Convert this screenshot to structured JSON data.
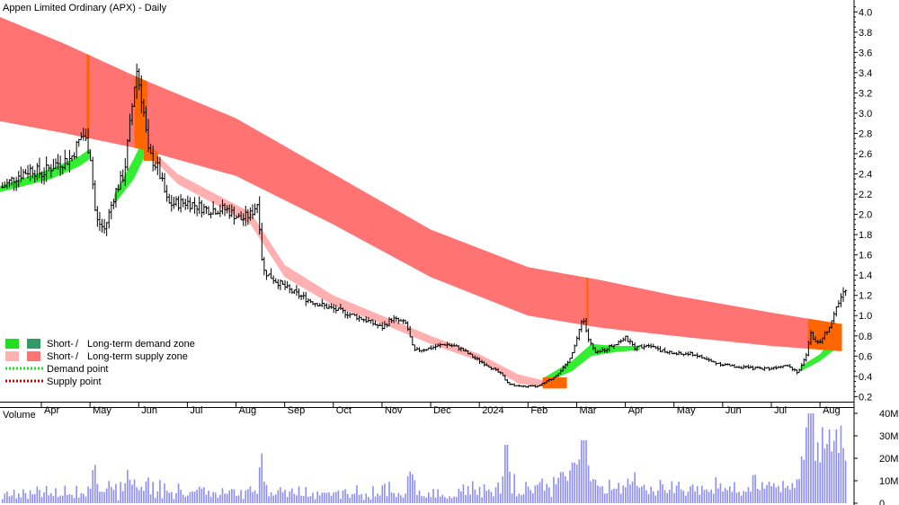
{
  "chart_data": {
    "type": "candlestick",
    "title": "Appen Limited Ordinary (APX) - Daily",
    "price_axis": {
      "ticks": [
        0.2,
        0.4,
        0.6,
        0.8,
        1.0,
        1.2,
        1.4,
        1.6,
        1.8,
        2.0,
        2.2,
        2.4,
        2.6,
        2.8,
        3.0,
        3.2,
        3.4,
        3.6,
        3.8,
        4.0
      ],
      "tick_labels": [
        "0.2",
        "0.4",
        "0.6",
        "0.8",
        "1.0",
        "1.2",
        "1.4",
        "1.6",
        "1.8",
        "2.0",
        "2.2",
        "2.4",
        "2.6",
        "2.8",
        "3.0",
        "3.2",
        "3.4",
        "3.6",
        "3.8",
        "4.0"
      ],
      "ylim": [
        0.15,
        4.1
      ]
    },
    "x_axis": {
      "labels": [
        "Apr",
        "May",
        "Jun",
        "Jul",
        "Aug",
        "Sep",
        "Oct",
        "Nov",
        "Dec",
        "2024",
        "Feb",
        "Mar",
        "Apr",
        "May",
        "Jun",
        "Jul",
        "Aug"
      ],
      "label_positions_month_index": [
        0,
        1,
        2,
        3,
        4,
        5,
        6,
        7,
        8,
        9,
        10,
        11,
        12,
        13,
        14,
        15,
        16
      ],
      "xlim_months": [
        -0.85,
        16.7
      ]
    },
    "volume_panel": {
      "title": "Volume",
      "ticks": [
        0,
        10,
        20,
        30,
        40
      ],
      "tick_labels": [
        "0",
        "10M",
        "20M",
        "30M",
        "40M"
      ],
      "ylim_millions": [
        0,
        42
      ],
      "bar_color": "#8c8cff"
    },
    "price_path": [
      {
        "m": -0.85,
        "p": 2.25
      },
      {
        "m": -0.5,
        "p": 2.38
      },
      {
        "m": -0.2,
        "p": 2.45
      },
      {
        "m": 0.0,
        "p": 2.4
      },
      {
        "m": 0.3,
        "p": 2.5
      },
      {
        "m": 0.6,
        "p": 2.55
      },
      {
        "m": 0.85,
        "p": 2.8
      },
      {
        "m": 1.0,
        "p": 2.62
      },
      {
        "m": 1.12,
        "p": 1.95
      },
      {
        "m": 1.3,
        "p": 1.85
      },
      {
        "m": 1.5,
        "p": 2.2
      },
      {
        "m": 1.7,
        "p": 2.4
      },
      {
        "m": 1.85,
        "p": 3.0
      },
      {
        "m": 1.95,
        "p": 3.45
      },
      {
        "m": 2.08,
        "p": 3.1
      },
      {
        "m": 2.2,
        "p": 2.6
      },
      {
        "m": 2.4,
        "p": 2.45
      },
      {
        "m": 2.6,
        "p": 2.1
      },
      {
        "m": 3.0,
        "p": 2.12
      },
      {
        "m": 3.4,
        "p": 2.05
      },
      {
        "m": 3.8,
        "p": 2.05
      },
      {
        "m": 4.1,
        "p": 1.95
      },
      {
        "m": 4.3,
        "p": 2.0
      },
      {
        "m": 4.45,
        "p": 2.12
      },
      {
        "m": 4.55,
        "p": 1.45
      },
      {
        "m": 4.8,
        "p": 1.35
      },
      {
        "m": 5.1,
        "p": 1.25
      },
      {
        "m": 5.5,
        "p": 1.15
      },
      {
        "m": 5.9,
        "p": 1.08
      },
      {
        "m": 6.3,
        "p": 1.02
      },
      {
        "m": 6.7,
        "p": 0.95
      },
      {
        "m": 7.0,
        "p": 0.88
      },
      {
        "m": 7.2,
        "p": 0.97
      },
      {
        "m": 7.5,
        "p": 0.92
      },
      {
        "m": 7.65,
        "p": 0.65
      },
      {
        "m": 8.0,
        "p": 0.68
      },
      {
        "m": 8.3,
        "p": 0.72
      },
      {
        "m": 8.6,
        "p": 0.68
      },
      {
        "m": 8.9,
        "p": 0.58
      },
      {
        "m": 9.2,
        "p": 0.5
      },
      {
        "m": 9.45,
        "p": 0.42
      },
      {
        "m": 9.6,
        "p": 0.32
      },
      {
        "m": 9.9,
        "p": 0.3
      },
      {
        "m": 10.2,
        "p": 0.3
      },
      {
        "m": 10.5,
        "p": 0.38
      },
      {
        "m": 10.8,
        "p": 0.52
      },
      {
        "m": 11.0,
        "p": 0.75
      },
      {
        "m": 11.12,
        "p": 1.0
      },
      {
        "m": 11.25,
        "p": 0.75
      },
      {
        "m": 11.4,
        "p": 0.62
      },
      {
        "m": 11.7,
        "p": 0.7
      },
      {
        "m": 12.0,
        "p": 0.78
      },
      {
        "m": 12.2,
        "p": 0.68
      },
      {
        "m": 12.5,
        "p": 0.72
      },
      {
        "m": 12.8,
        "p": 0.64
      },
      {
        "m": 13.1,
        "p": 0.62
      },
      {
        "m": 13.4,
        "p": 0.62
      },
      {
        "m": 13.8,
        "p": 0.54
      },
      {
        "m": 14.2,
        "p": 0.5
      },
      {
        "m": 14.6,
        "p": 0.48
      },
      {
        "m": 15.0,
        "p": 0.48
      },
      {
        "m": 15.3,
        "p": 0.52
      },
      {
        "m": 15.55,
        "p": 0.44
      },
      {
        "m": 15.7,
        "p": 0.58
      },
      {
        "m": 15.8,
        "p": 0.82
      },
      {
        "m": 15.95,
        "p": 0.72
      },
      {
        "m": 16.1,
        "p": 0.82
      },
      {
        "m": 16.25,
        "p": 0.95
      },
      {
        "m": 16.4,
        "p": 1.15
      },
      {
        "m": 16.55,
        "p": 1.3
      }
    ],
    "long_term_supply_zone": {
      "color": "#ff7373",
      "upper": [
        {
          "m": -0.85,
          "p": 3.95
        },
        {
          "m": 0.5,
          "p": 3.68
        },
        {
          "m": 2.0,
          "p": 3.35
        },
        {
          "m": 4.0,
          "p": 2.95
        },
        {
          "m": 6.0,
          "p": 2.4
        },
        {
          "m": 8.0,
          "p": 1.85
        },
        {
          "m": 10.0,
          "p": 1.48
        },
        {
          "m": 11.5,
          "p": 1.35
        },
        {
          "m": 13.0,
          "p": 1.2
        },
        {
          "m": 15.0,
          "p": 1.03
        },
        {
          "m": 16.4,
          "p": 0.92
        }
      ],
      "lower": [
        {
          "m": -0.85,
          "p": 2.92
        },
        {
          "m": 0.5,
          "p": 2.8
        },
        {
          "m": 2.0,
          "p": 2.65
        },
        {
          "m": 4.0,
          "p": 2.38
        },
        {
          "m": 6.0,
          "p": 1.9
        },
        {
          "m": 8.0,
          "p": 1.38
        },
        {
          "m": 10.0,
          "p": 1.0
        },
        {
          "m": 11.5,
          "p": 0.88
        },
        {
          "m": 13.0,
          "p": 0.8
        },
        {
          "m": 15.0,
          "p": 0.7
        },
        {
          "m": 16.4,
          "p": 0.65
        }
      ]
    },
    "short_term_supply_zone": {
      "color": "#ffb0b0",
      "upper": [
        {
          "m": 2.3,
          "p": 2.62
        },
        {
          "m": 2.8,
          "p": 2.4
        },
        {
          "m": 3.5,
          "p": 2.22
        },
        {
          "m": 4.3,
          "p": 2.02
        },
        {
          "m": 5.0,
          "p": 1.5
        },
        {
          "m": 6.0,
          "p": 1.2
        },
        {
          "m": 7.0,
          "p": 1.0
        },
        {
          "m": 8.0,
          "p": 0.8
        },
        {
          "m": 9.0,
          "p": 0.62
        },
        {
          "m": 9.8,
          "p": 0.42
        },
        {
          "m": 10.3,
          "p": 0.36
        }
      ],
      "lower": [
        {
          "m": 2.3,
          "p": 2.55
        },
        {
          "m": 2.8,
          "p": 2.3
        },
        {
          "m": 3.5,
          "p": 2.12
        },
        {
          "m": 4.3,
          "p": 1.9
        },
        {
          "m": 5.0,
          "p": 1.38
        },
        {
          "m": 6.0,
          "p": 1.1
        },
        {
          "m": 7.0,
          "p": 0.92
        },
        {
          "m": 8.0,
          "p": 0.72
        },
        {
          "m": 9.0,
          "p": 0.55
        },
        {
          "m": 9.8,
          "p": 0.33
        },
        {
          "m": 10.3,
          "p": 0.3
        }
      ]
    },
    "short_term_demand_zone": {
      "color": "#33ee33",
      "segments": [
        {
          "upper": [
            {
              "m": -0.85,
              "p": 2.28
            },
            {
              "m": 0.2,
              "p": 2.45
            },
            {
              "m": 0.8,
              "p": 2.58
            },
            {
              "m": 1.0,
              "p": 2.65
            }
          ],
          "lower": [
            {
              "m": -0.85,
              "p": 2.22
            },
            {
              "m": 0.2,
              "p": 2.35
            },
            {
              "m": 0.8,
              "p": 2.48
            },
            {
              "m": 1.0,
              "p": 2.55
            }
          ]
        },
        {
          "upper": [
            {
              "m": 1.5,
              "p": 2.2
            },
            {
              "m": 1.9,
              "p": 2.55
            },
            {
              "m": 2.1,
              "p": 2.75
            }
          ],
          "lower": [
            {
              "m": 1.5,
              "p": 2.1
            },
            {
              "m": 1.9,
              "p": 2.35
            },
            {
              "m": 2.1,
              "p": 2.55
            }
          ]
        },
        {
          "upper": [
            {
              "m": 10.3,
              "p": 0.38
            },
            {
              "m": 10.9,
              "p": 0.55
            },
            {
              "m": 11.3,
              "p": 0.72
            },
            {
              "m": 11.8,
              "p": 0.7
            },
            {
              "m": 12.3,
              "p": 0.7
            }
          ],
          "lower": [
            {
              "m": 10.3,
              "p": 0.33
            },
            {
              "m": 10.9,
              "p": 0.45
            },
            {
              "m": 11.3,
              "p": 0.6
            },
            {
              "m": 11.8,
              "p": 0.64
            },
            {
              "m": 12.3,
              "p": 0.66
            }
          ]
        },
        {
          "upper": [
            {
              "m": 15.6,
              "p": 0.5
            },
            {
              "m": 16.0,
              "p": 0.62
            },
            {
              "m": 16.4,
              "p": 0.85
            }
          ],
          "lower": [
            {
              "m": 15.6,
              "p": 0.45
            },
            {
              "m": 16.0,
              "p": 0.55
            },
            {
              "m": 16.4,
              "p": 0.7
            }
          ]
        }
      ]
    },
    "orange_overlap_color": "#ff6600",
    "legend": [
      {
        "label_a": "Short-",
        "sep": " / ",
        "label_b": "Long-term demand zone",
        "swatch_a": "#22dd22",
        "swatch_b": "#339966"
      },
      {
        "label_a": "Short-",
        "sep": " / ",
        "label_b": "Long-term supply zone",
        "swatch_a": "#ffb0b0",
        "swatch_b": "#ff7373"
      },
      {
        "label": "Demand point",
        "style": "dotted",
        "color": "#22dd22"
      },
      {
        "label": "Supply point",
        "style": "dotted",
        "color": "#cc0000"
      }
    ],
    "grid": false,
    "legend_position": "bottom-left"
  }
}
